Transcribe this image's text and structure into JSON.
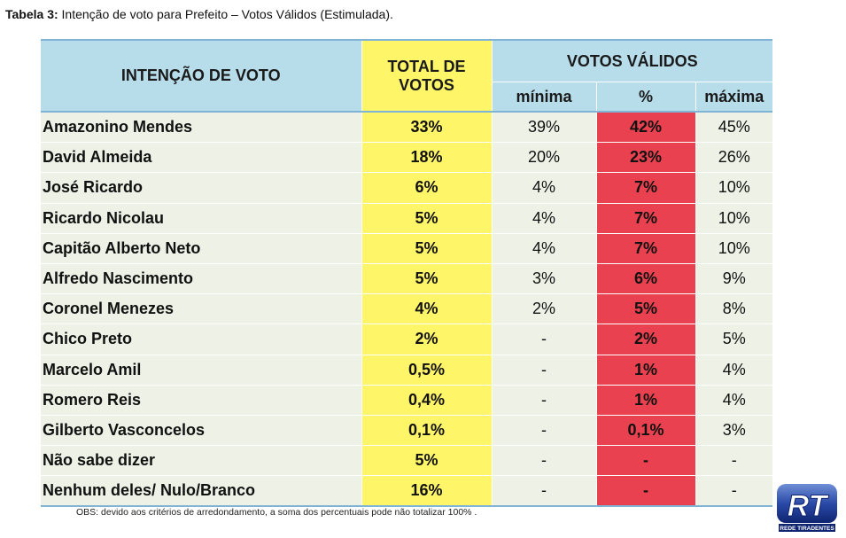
{
  "title": {
    "bold": "Tabela 3:",
    "text": " Intenção de voto para Prefeito – Votos Válidos (Estimulada)."
  },
  "headers": {
    "name": "INTENÇÃO DE VOTO",
    "total_line1": "TOTAL DE",
    "total_line2": "VOTOS",
    "group": "VOTOS VÁLIDOS",
    "min": "mínima",
    "pct": "%",
    "max": "máxima"
  },
  "rows": [
    {
      "name": "Amazonino Mendes",
      "total": "33%",
      "min": "39%",
      "pct": "42%",
      "max": "45%"
    },
    {
      "name": "David Almeida",
      "total": "18%",
      "min": "20%",
      "pct": "23%",
      "max": "26%"
    },
    {
      "name": "José Ricardo",
      "total": "6%",
      "min": "4%",
      "pct": "7%",
      "max": "10%"
    },
    {
      "name": "Ricardo Nicolau",
      "total": "5%",
      "min": "4%",
      "pct": "7%",
      "max": "10%"
    },
    {
      "name": "Capitão Alberto Neto",
      "total": "5%",
      "min": "4%",
      "pct": "7%",
      "max": "10%"
    },
    {
      "name": "Alfredo Nascimento",
      "total": "5%",
      "min": "3%",
      "pct": "6%",
      "max": "9%"
    },
    {
      "name": "Coronel Menezes",
      "total": "4%",
      "min": "2%",
      "pct": "5%",
      "max": "8%"
    },
    {
      "name": "Chico Preto",
      "total": "2%",
      "min": "-",
      "pct": "2%",
      "max": "5%"
    },
    {
      "name": "Marcelo Amil",
      "total": "0,5%",
      "min": "-",
      "pct": "1%",
      "max": "4%"
    },
    {
      "name": "Romero Reis",
      "total": "0,4%",
      "min": "-",
      "pct": "1%",
      "max": "4%"
    },
    {
      "name": "Gilberto Vasconcelos",
      "total": "0,1%",
      "min": "-",
      "pct": "0,1%",
      "max": "3%"
    },
    {
      "name": "Não sabe dizer",
      "total": "5%",
      "min": "-",
      "pct": "-",
      "max": "-"
    },
    {
      "name": "Nenhum deles/ Nulo/Branco",
      "total": "16%",
      "min": "-",
      "pct": "-",
      "max": "-"
    }
  ],
  "obs": "OBS: devido aos critérios de arredondamento, a soma dos percentuais pode não totalizar 100% .",
  "logo": {
    "letters": "RT",
    "caption": "REDE TIRADENTES"
  },
  "colors": {
    "header_blue": "#b7dcea",
    "total_yellow": "#fff568",
    "pct_red": "#e9414f",
    "row_bg": "#eef1e6"
  }
}
